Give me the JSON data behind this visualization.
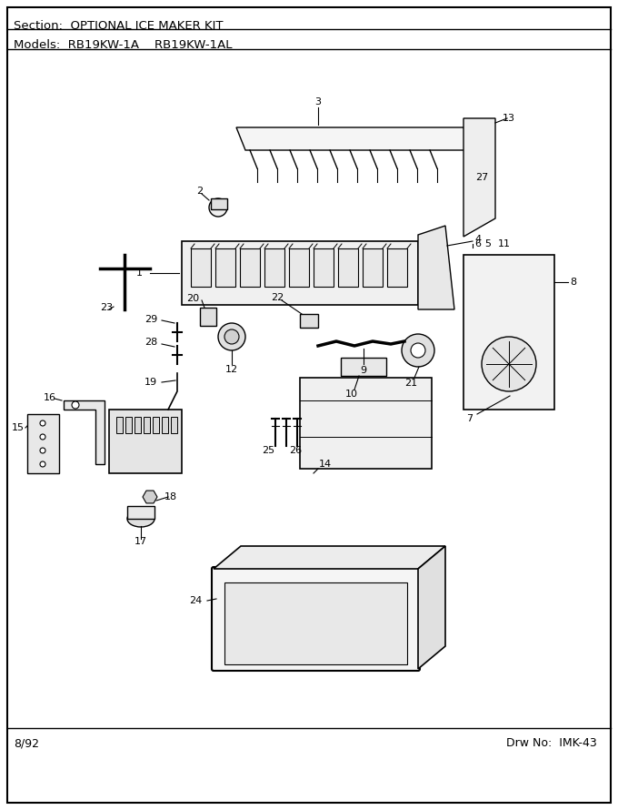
{
  "title_section": "Section:  OPTIONAL ICE MAKER KIT",
  "models_line": "Models:  RB19KW-1A    RB19KW-1AL",
  "footer_left": "8/92",
  "footer_right": "Drw No:  IMK-43",
  "bg_color": "#ffffff",
  "border_color": "#000000",
  "text_color": "#000000",
  "fig_width": 6.8,
  "fig_height": 8.9,
  "dpi": 100
}
